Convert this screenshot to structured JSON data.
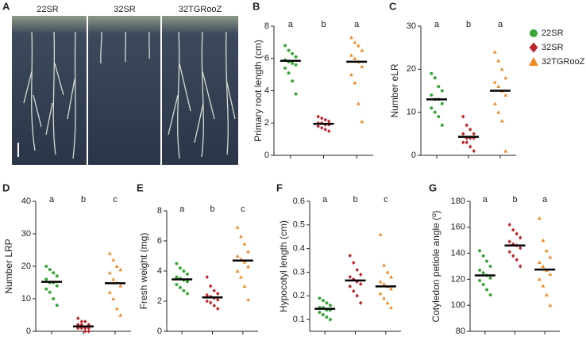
{
  "image_panel": {
    "panel": "A",
    "labels": [
      "22SR",
      "32SR",
      "32TGRooZ"
    ]
  },
  "legend": {
    "entries": [
      {
        "name": "22SR",
        "color": "#3aa63a",
        "marker": "circle"
      },
      {
        "name": "32SR",
        "color": "#c0272d",
        "marker": "diamond"
      },
      {
        "name": "32TGRooZ",
        "color": "#f08a24",
        "marker": "triangle"
      }
    ]
  },
  "chart_data": [
    {
      "type": "dotplot",
      "panel": "B",
      "ylabel": "Primary root length (cm)",
      "ylim": [
        0,
        8
      ],
      "yticks": [
        0,
        2,
        4,
        6,
        8
      ],
      "groups": [
        {
          "letter": "a",
          "mean": 5.85,
          "values": [
            6.8,
            6.5,
            6.3,
            6.1,
            5.9,
            5.8,
            5.7,
            5.6,
            5.4,
            5.1,
            4.6,
            3.8
          ]
        },
        {
          "letter": "b",
          "mean": 1.95,
          "values": [
            2.4,
            2.3,
            2.2,
            2.1,
            2.0,
            2.0,
            1.9,
            1.9,
            1.8,
            1.7,
            1.6,
            1.5
          ]
        },
        {
          "letter": "a",
          "mean": 5.8,
          "values": [
            7.3,
            7.0,
            6.8,
            6.5,
            6.2,
            6.0,
            5.8,
            5.5,
            5.0,
            4.5,
            3.2,
            2.1
          ]
        }
      ]
    },
    {
      "type": "dotplot",
      "panel": "C",
      "ylabel": "Number eLR",
      "ylim": [
        0,
        30
      ],
      "yticks": [
        0,
        10,
        20,
        30
      ],
      "groups": [
        {
          "letter": "a",
          "mean": 13,
          "values": [
            19,
            18,
            16,
            15,
            14,
            13,
            13,
            12,
            11,
            10,
            9,
            7
          ]
        },
        {
          "letter": "b",
          "mean": 4.3,
          "values": [
            9,
            7,
            6,
            5,
            5,
            4,
            4,
            4,
            3,
            3,
            2,
            1
          ]
        },
        {
          "letter": "a",
          "mean": 15,
          "values": [
            24,
            22,
            20,
            18,
            17,
            16,
            15,
            14,
            12,
            10,
            8,
            1
          ]
        }
      ]
    },
    {
      "type": "dotplot",
      "panel": "D",
      "ylabel": "Number LRP",
      "ylim": [
        0,
        40
      ],
      "yticks": [
        0,
        10,
        20,
        30,
        40
      ],
      "groups": [
        {
          "letter": "a",
          "mean": 15.2,
          "values": [
            20,
            19,
            18,
            17,
            16,
            15,
            15,
            14,
            13,
            12,
            10,
            8
          ]
        },
        {
          "letter": "b",
          "mean": 1.5,
          "values": [
            4,
            3,
            3,
            2,
            2,
            2,
            1,
            1,
            1,
            1,
            0,
            0
          ]
        },
        {
          "letter": "c",
          "mean": 14.8,
          "values": [
            24,
            22,
            20,
            19,
            18,
            16,
            15,
            14,
            12,
            10,
            7,
            5
          ]
        }
      ]
    },
    {
      "type": "dotplot",
      "panel": "E",
      "ylabel": "Fresh weight (mg)",
      "ylim": [
        0,
        8
      ],
      "yticks": [
        0,
        2,
        4,
        6,
        8
      ],
      "groups": [
        {
          "letter": "a",
          "mean": 3.45,
          "values": [
            4.5,
            4.2,
            4.0,
            3.8,
            3.6,
            3.5,
            3.4,
            3.3,
            3.1,
            2.9,
            2.7,
            2.5
          ]
        },
        {
          "letter": "b",
          "mean": 2.25,
          "values": [
            3.6,
            3.0,
            2.7,
            2.5,
            2.4,
            2.3,
            2.2,
            2.1,
            2.0,
            1.9,
            1.7,
            1.5
          ]
        },
        {
          "letter": "c",
          "mean": 4.7,
          "values": [
            6.9,
            6.3,
            5.8,
            5.3,
            5.0,
            4.8,
            4.6,
            4.3,
            4.0,
            3.6,
            3.0,
            2.1
          ]
        }
      ]
    },
    {
      "type": "dotplot",
      "panel": "F",
      "ylabel": "Hypocotyl length (cm)",
      "ylim": [
        0.05,
        0.6
      ],
      "yticks": [
        0.1,
        0.2,
        0.3,
        0.4,
        0.5,
        0.6
      ],
      "groups": [
        {
          "letter": "a",
          "mean": 0.145,
          "values": [
            0.19,
            0.18,
            0.17,
            0.16,
            0.15,
            0.15,
            0.14,
            0.14,
            0.13,
            0.12,
            0.11,
            0.1
          ]
        },
        {
          "letter": "b",
          "mean": 0.265,
          "values": [
            0.37,
            0.34,
            0.31,
            0.29,
            0.28,
            0.27,
            0.26,
            0.25,
            0.24,
            0.22,
            0.2,
            0.17
          ]
        },
        {
          "letter": "c",
          "mean": 0.24,
          "values": [
            0.46,
            0.33,
            0.3,
            0.28,
            0.26,
            0.25,
            0.24,
            0.23,
            0.21,
            0.19,
            0.17,
            0.15
          ]
        }
      ]
    },
    {
      "type": "dotplot",
      "panel": "G",
      "ylabel": "Cotyledon petiole angle (º)",
      "ylim": [
        80,
        180
      ],
      "yticks": [
        80,
        100,
        120,
        140,
        160,
        180
      ],
      "groups": [
        {
          "letter": "a",
          "mean": 123,
          "values": [
            142,
            138,
            134,
            130,
            127,
            125,
            123,
            121,
            119,
            116,
            112,
            108
          ]
        },
        {
          "letter": "b",
          "mean": 146,
          "values": [
            162,
            158,
            155,
            152,
            149,
            147,
            146,
            144,
            141,
            138,
            135,
            130
          ]
        },
        {
          "letter": "a",
          "mean": 127.5,
          "values": [
            167,
            150,
            142,
            137,
            133,
            130,
            127,
            124,
            120,
            115,
            108,
            100
          ]
        }
      ]
    }
  ]
}
